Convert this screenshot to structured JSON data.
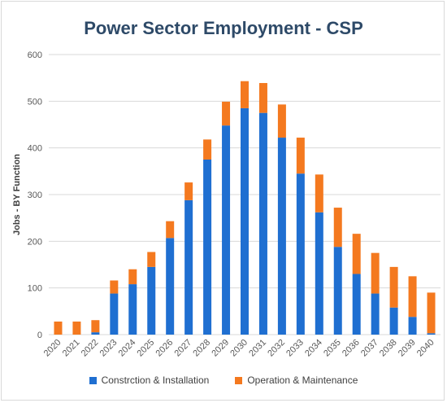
{
  "chart_data": {
    "type": "bar",
    "stacked": true,
    "title": "Power Sector Employment - CSP",
    "xlabel": "",
    "ylabel": "Jobs - BY Function",
    "ylim": [
      0,
      600
    ],
    "yticks": [
      0,
      100,
      200,
      300,
      400,
      500,
      600
    ],
    "grid": true,
    "legend_position": "bottom",
    "categories": [
      "2020",
      "2021",
      "2022",
      "2023",
      "2024",
      "2025",
      "2026",
      "2027",
      "2028",
      "2029",
      "2030",
      "2031",
      "2032",
      "2033",
      "2034",
      "2035",
      "2036",
      "2037",
      "2038",
      "2039",
      "2040"
    ],
    "series": [
      {
        "name": "Constrction & Installation",
        "color": "#1f6fd1",
        "values": [
          0,
          0,
          5,
          88,
          108,
          145,
          207,
          288,
          375,
          448,
          485,
          475,
          422,
          345,
          262,
          188,
          130,
          88,
          58,
          38,
          3
        ]
      },
      {
        "name": "Operation & Maintenance",
        "color": "#f4791f",
        "values": [
          28,
          28,
          26,
          28,
          32,
          32,
          36,
          38,
          43,
          51,
          58,
          64,
          71,
          77,
          81,
          84,
          86,
          87,
          87,
          87,
          87
        ]
      }
    ]
  }
}
